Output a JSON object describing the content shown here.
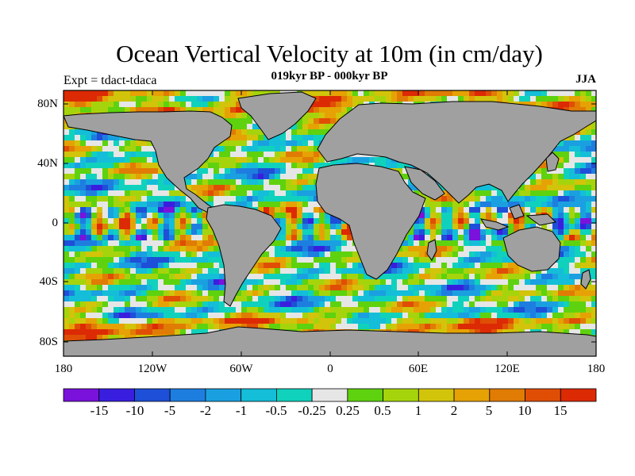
{
  "title": "Ocean Vertical Velocity at 10m (in cm/day)",
  "subtitle": "019kyr BP - 000kyr BP",
  "experiment": "Expt = tdact-tdaca",
  "season": "JJA",
  "y_axis": {
    "ticks": [
      "80N",
      "40N",
      "0",
      "40S",
      "80S"
    ]
  },
  "x_axis": {
    "ticks": [
      "180",
      "120W",
      "60W",
      "0",
      "60E",
      "120E",
      "180"
    ]
  },
  "colorbar": {
    "labels": [
      "-15",
      "-10",
      "-5",
      "-2",
      "-1",
      "-0.5",
      "-0.25",
      "0.25",
      "0.5",
      "1",
      "2",
      "5",
      "10",
      "15"
    ],
    "colors": [
      "#7a12dc",
      "#3a1ee0",
      "#1e4fd8",
      "#1e7ee0",
      "#1aa0e0",
      "#14bed8",
      "#10d2bc",
      "#e6e6e6",
      "#5ed20e",
      "#a6d40c",
      "#d2c40a",
      "#e6a204",
      "#e07c04",
      "#e04e06",
      "#dc2a04"
    ]
  },
  "colors": {
    "land": "#a0a0a0",
    "frame": "#000000"
  }
}
